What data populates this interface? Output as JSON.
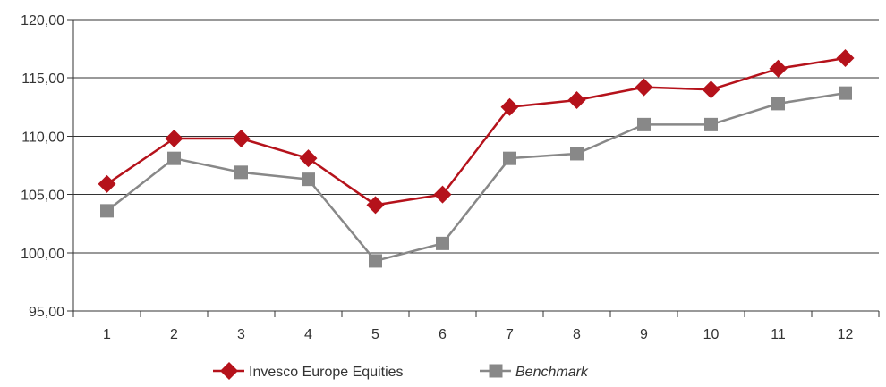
{
  "chart_data": {
    "type": "line",
    "title": "",
    "xlabel": "",
    "ylabel": "",
    "categories": [
      "1",
      "2",
      "3",
      "4",
      "5",
      "6",
      "7",
      "8",
      "9",
      "10",
      "11",
      "12"
    ],
    "ylim": [
      95,
      120
    ],
    "yticks": [
      95,
      100,
      105,
      110,
      115,
      120
    ],
    "ytick_labels": [
      "95,00",
      "100,00",
      "105,00",
      "110,00",
      "115,00",
      "120,00"
    ],
    "grid": "horizontal",
    "legend_position": "bottom",
    "series": [
      {
        "name": "Invesco Europe Equities",
        "values": [
          105.9,
          109.8,
          109.8,
          108.1,
          104.1,
          105.0,
          112.5,
          113.1,
          114.2,
          114.0,
          115.8,
          116.7
        ],
        "color": "#b5121b",
        "marker": "diamond",
        "italic": false
      },
      {
        "name": "Benchmark",
        "values": [
          103.6,
          108.1,
          106.9,
          106.3,
          99.3,
          100.8,
          108.1,
          108.5,
          111.0,
          111.0,
          112.8,
          113.7
        ],
        "color": "#888888",
        "marker": "square",
        "italic": true
      }
    ]
  }
}
